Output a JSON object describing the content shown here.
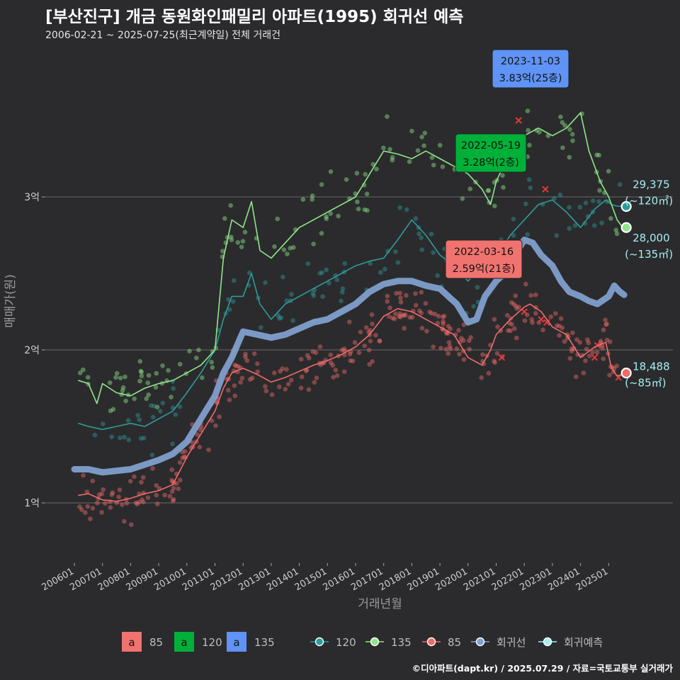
{
  "title": "[부산진구] 개금 동원화인패밀리 아파트(1995) 회귀선 예측",
  "subtitle": "2006-02-21 ~ 2025-07-25(최근계약일) 전체 거래건",
  "footer": "©디아파트(dapt.kr) / 2025.07.29 / 자료=국토교통부 실거래가",
  "colors": {
    "s85": "#ef6a6a",
    "s120": "#2e9b9b",
    "s135": "#8ee68a",
    "regression": "#7f9fcc",
    "forecast": "#a6eef2",
    "box85": "#f0736f",
    "box120": "#00b038",
    "box135": "#5f93f5"
  },
  "chart_data": {
    "type": "line",
    "xlabel": "거래년월",
    "ylabel": "매매가(원)",
    "x_range": [
      2006.0,
      2025.6
    ],
    "ylim": [
      0.55,
      3.8
    ],
    "y_unit": "억",
    "y_ticks": [
      {
        "value": 1,
        "label": "1억"
      },
      {
        "value": 2,
        "label": "2억"
      },
      {
        "value": 3,
        "label": "3억"
      }
    ],
    "x_ticks": [
      "200601",
      "200701",
      "200801",
      "200901",
      "201001",
      "201101",
      "201201",
      "201301",
      "201401",
      "201501",
      "201601",
      "201701",
      "201801",
      "201901",
      "202001",
      "202101",
      "202201",
      "202301",
      "202401",
      "202501"
    ],
    "series": [
      {
        "name": "85",
        "color": "#ef6a6a",
        "x": [
          2006.15,
          2006.5,
          2007.0,
          2007.5,
          2008.0,
          2008.5,
          2009.0,
          2009.5,
          2010.0,
          2010.5,
          2011.0,
          2011.3,
          2011.6,
          2012.0,
          2012.5,
          2013.0,
          2013.5,
          2014.0,
          2014.5,
          2015.0,
          2015.5,
          2016.0,
          2016.5,
          2017.0,
          2017.5,
          2018.0,
          2018.5,
          2019.0,
          2019.5,
          2020.0,
          2020.5,
          2020.8,
          2021.0,
          2021.5,
          2022.0,
          2022.2,
          2022.6,
          2023.0,
          2023.5,
          2024.0,
          2024.5,
          2024.9,
          2025.1,
          2025.3,
          2025.5
        ],
        "values": [
          1.05,
          1.06,
          1.02,
          1.01,
          1.03,
          1.06,
          1.08,
          1.12,
          1.3,
          1.45,
          1.6,
          1.75,
          1.85,
          1.88,
          1.84,
          1.79,
          1.82,
          1.86,
          1.9,
          1.93,
          1.97,
          2.02,
          2.1,
          2.22,
          2.27,
          2.25,
          2.2,
          2.15,
          2.1,
          1.95,
          1.9,
          2.0,
          2.1,
          2.2,
          2.28,
          2.3,
          2.25,
          2.15,
          2.1,
          1.95,
          2.02,
          2.05,
          1.88,
          1.83,
          1.84
        ]
      },
      {
        "name": "120",
        "color": "#2e9b9b",
        "x": [
          2006.15,
          2006.5,
          2007.0,
          2007.5,
          2008.0,
          2008.5,
          2009.0,
          2009.5,
          2010.0,
          2010.5,
          2011.0,
          2011.3,
          2011.6,
          2012.0,
          2012.3,
          2012.6,
          2013.0,
          2013.5,
          2014.0,
          2014.5,
          2015.0,
          2015.5,
          2016.0,
          2016.5,
          2017.0,
          2017.5,
          2018.0,
          2018.5,
          2019.0,
          2019.5,
          2020.0,
          2020.5,
          2021.0,
          2021.5,
          2022.0,
          2022.5,
          2023.0,
          2023.5,
          2024.0,
          2024.5,
          2024.9,
          2025.1,
          2025.3,
          2025.5
        ],
        "values": [
          1.52,
          1.5,
          1.48,
          1.5,
          1.52,
          1.5,
          1.55,
          1.6,
          1.72,
          1.85,
          2.0,
          2.2,
          2.35,
          2.35,
          2.5,
          2.3,
          2.2,
          2.3,
          2.35,
          2.4,
          2.45,
          2.5,
          2.55,
          2.58,
          2.6,
          2.72,
          2.85,
          2.75,
          2.62,
          2.55,
          2.45,
          2.55,
          2.6,
          2.75,
          2.85,
          2.95,
          2.98,
          2.9,
          2.8,
          2.92,
          2.98,
          2.95,
          2.94,
          2.94
        ]
      },
      {
        "name": "135",
        "color": "#8ee68a",
        "x": [
          2006.15,
          2006.5,
          2006.8,
          2007.0,
          2007.5,
          2008.0,
          2008.5,
          2009.0,
          2009.5,
          2010.0,
          2010.5,
          2011.0,
          2011.3,
          2011.6,
          2012.0,
          2012.3,
          2012.6,
          2013.0,
          2013.5,
          2014.0,
          2014.5,
          2015.0,
          2015.5,
          2016.0,
          2016.5,
          2017.0,
          2017.5,
          2018.0,
          2018.5,
          2019.0,
          2019.5,
          2020.0,
          2020.5,
          2020.8,
          2021.0,
          2021.5,
          2022.0,
          2022.5,
          2023.0,
          2023.5,
          2024.0,
          2024.3,
          2024.7,
          2025.0,
          2025.3,
          2025.5
        ],
        "values": [
          1.8,
          1.78,
          1.65,
          1.78,
          1.72,
          1.7,
          1.75,
          1.78,
          1.8,
          1.85,
          1.9,
          2.0,
          2.6,
          2.85,
          2.8,
          2.97,
          2.65,
          2.6,
          2.7,
          2.8,
          2.85,
          2.9,
          2.95,
          3.0,
          3.15,
          3.3,
          3.28,
          3.25,
          3.3,
          3.25,
          3.2,
          3.15,
          3.05,
          2.95,
          3.1,
          3.3,
          3.4,
          3.45,
          3.4,
          3.45,
          3.55,
          3.3,
          3.1,
          3.0,
          2.85,
          2.8
        ]
      },
      {
        "name": "회귀선",
        "color": "#7f9fcc",
        "x": [
          2006.0,
          2006.5,
          2007.0,
          2007.5,
          2008.0,
          2008.5,
          2009.0,
          2009.5,
          2010.0,
          2010.5,
          2011.0,
          2011.3,
          2011.6,
          2012.0,
          2012.5,
          2013.0,
          2013.5,
          2014.0,
          2014.5,
          2015.0,
          2015.5,
          2016.0,
          2016.5,
          2017.0,
          2017.5,
          2018.0,
          2018.5,
          2019.0,
          2019.3,
          2019.6,
          2020.0,
          2020.3,
          2020.6,
          2021.0,
          2021.3,
          2021.6,
          2022.0,
          2022.3,
          2022.6,
          2023.0,
          2023.3,
          2023.6,
          2024.0,
          2024.3,
          2024.6,
          2025.0,
          2025.2,
          2025.4,
          2025.55
        ],
        "values": [
          1.22,
          1.22,
          1.2,
          1.21,
          1.22,
          1.25,
          1.28,
          1.32,
          1.4,
          1.55,
          1.7,
          1.85,
          1.95,
          2.12,
          2.1,
          2.08,
          2.1,
          2.14,
          2.18,
          2.2,
          2.25,
          2.3,
          2.38,
          2.43,
          2.45,
          2.45,
          2.42,
          2.4,
          2.35,
          2.3,
          2.18,
          2.2,
          2.35,
          2.45,
          2.5,
          2.6,
          2.72,
          2.7,
          2.62,
          2.55,
          2.45,
          2.38,
          2.35,
          2.32,
          2.3,
          2.35,
          2.42,
          2.38,
          2.36
        ]
      }
    ],
    "forecast_points": [
      {
        "series": "120",
        "x": 2025.5,
        "y": 2.9375,
        "value_label": "29,375",
        "area_label": "(~120㎡)"
      },
      {
        "series": "135",
        "x": 2025.5,
        "y": 2.8,
        "value_label": "28,000",
        "area_label": "(~135㎡)"
      },
      {
        "series": "85",
        "x": 2025.5,
        "y": 1.8488,
        "value_label": "18,488",
        "area_label": "(~85㎡)"
      }
    ],
    "annotations": [
      {
        "series": "135",
        "date": "2023-11-03",
        "text": "3.83억(25층)",
        "price": 3.83
      },
      {
        "series": "120",
        "date": "2022-05-19",
        "text": "3.28억(2층)",
        "price": 3.28
      },
      {
        "series": "85",
        "date": "2022-03-16",
        "text": "2.59억(21층)",
        "price": 2.59
      }
    ],
    "legend": {
      "position": "bottom",
      "box_items": [
        "85",
        "120",
        "135"
      ],
      "box_letter": "a",
      "line_items": [
        "120",
        "135",
        "85",
        "회귀선",
        "회귀예측"
      ]
    }
  }
}
